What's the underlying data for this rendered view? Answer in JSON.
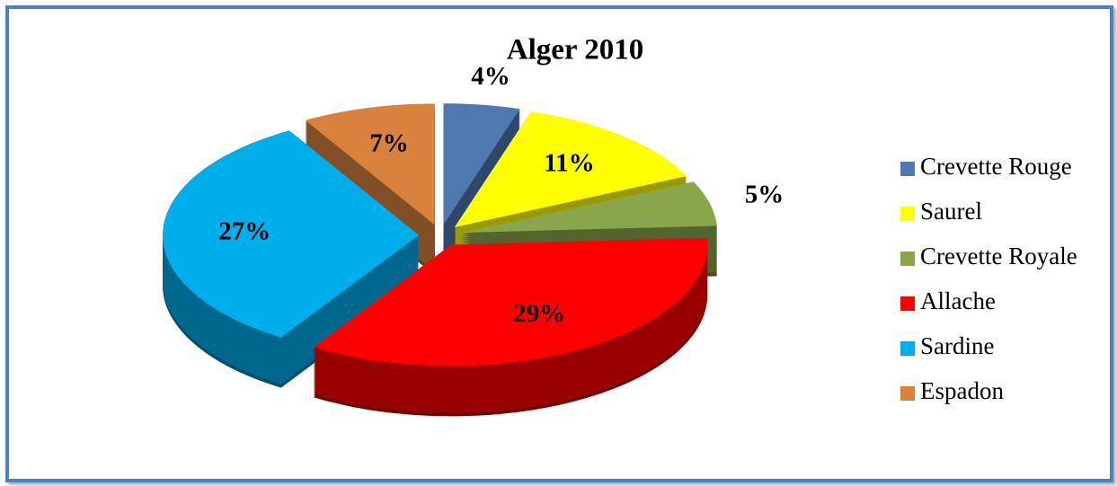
{
  "chart_data": {
    "type": "pie",
    "title": "Alger 2010",
    "categories": [
      "Crevette Rouge",
      "Saurel",
      "Crevette Royale",
      "Allache",
      "Sardine",
      "Espadon"
    ],
    "values": [
      4,
      11,
      5,
      29,
      27,
      7
    ],
    "value_labels": [
      "4%",
      "11%",
      "5%",
      "29%",
      "27%",
      "7%"
    ],
    "colors": [
      "#4f78b0",
      "#ffff00",
      "#8aa64c",
      "#ff0000",
      "#00aeeb",
      "#d9823e"
    ],
    "legend": "right"
  }
}
